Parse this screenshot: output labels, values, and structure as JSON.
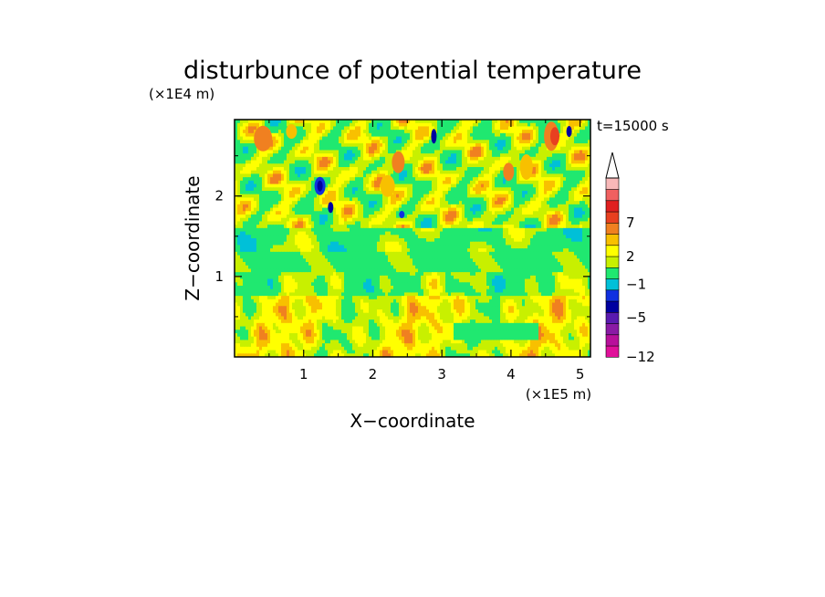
{
  "chart_data": {
    "type": "heatmap",
    "title": "disturbunce of potential temperature",
    "time_label": "t=15000 s",
    "xlabel": "X−coordinate",
    "ylabel": "Z−coordinate",
    "x_unit": "(×1E5 m)",
    "y_unit": "(×1E4 m)",
    "xlim": [
      0,
      5.15
    ],
    "ylim": [
      0,
      2.95
    ],
    "x_ticks": [
      "1",
      "2",
      "3",
      "4",
      "5"
    ],
    "y_ticks": [
      "1",
      "2"
    ],
    "colorbar": {
      "levels": [
        -12,
        -10,
        -8,
        -5,
        -3,
        -1,
        0,
        1,
        2,
        4,
        5,
        7,
        8,
        10
      ],
      "tick_labels": [
        "−12",
        "−5",
        "−1",
        "2",
        "7"
      ],
      "extend": "max",
      "colors": [
        "#e0109a",
        "#b8109b",
        "#8a1aa5",
        "#5a1ab0",
        "#0000a0",
        "#1030e0",
        "#00c0d8",
        "#20e870",
        "#c8f000",
        "#ffff00",
        "#f8c000",
        "#f08020",
        "#e84020",
        "#e02020",
        "#f06060",
        "#f8b8b8"
      ]
    }
  }
}
